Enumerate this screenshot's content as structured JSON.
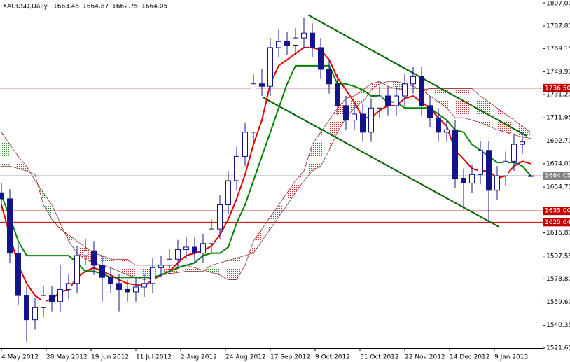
{
  "chart_data": {
    "type": "candlestick",
    "title": "XAUUSD,Daily",
    "color": "#14148a",
    "x": [
      0,
      3,
      6,
      9,
      12,
      15,
      18,
      21,
      24,
      27,
      30,
      33,
      36,
      39,
      42,
      45,
      48,
      51,
      54,
      57,
      60,
      63,
      66,
      69,
      72,
      75,
      78,
      81,
      84,
      87,
      90,
      93,
      96,
      99,
      102,
      105,
      108,
      111,
      114,
      117,
      120,
      123,
      126,
      129,
      132,
      135,
      138,
      141,
      144,
      147,
      150,
      153,
      156,
      159,
      162,
      165,
      168,
      171,
      174,
      177,
      180,
      183,
      186,
      189
    ],
    "open": [
      1650,
      1645,
      1600,
      1565,
      1545,
      1555,
      1565,
      1560,
      1570,
      1575,
      1598,
      1602,
      1590,
      1580,
      1575,
      1570,
      1568,
      1572,
      1575,
      1588,
      1590,
      1595,
      1603,
      1605,
      1600,
      1608,
      1620,
      1640,
      1660,
      1680,
      1700,
      1740,
      1738,
      1770,
      1775,
      1772,
      1778,
      1782,
      1770,
      1752,
      1740,
      1722,
      1710,
      1715,
      1700,
      1720,
      1730,
      1722,
      1730,
      1740,
      1746,
      1722,
      1712,
      1700,
      1702,
      1662,
      1658,
      1665,
      1685,
      1652,
      1664,
      1676,
      1690,
      1663.45
    ],
    "high": [
      1658,
      1653,
      1608,
      1573,
      1563,
      1573,
      1573,
      1590,
      1583,
      1606,
      1612,
      1610,
      1598,
      1588,
      1583,
      1578,
      1580,
      1583,
      1596,
      1598,
      1603,
      1611,
      1613,
      1613,
      1616,
      1628,
      1648,
      1668,
      1688,
      1708,
      1748,
      1752,
      1778,
      1785,
      1783,
      1786,
      1795,
      1790,
      1778,
      1760,
      1748,
      1730,
      1723,
      1723,
      1728,
      1738,
      1738,
      1738,
      1748,
      1754,
      1754,
      1730,
      1720,
      1710,
      1710,
      1670,
      1673,
      1693,
      1693,
      1672,
      1684,
      1698,
      1700,
      1664.87
    ],
    "low": [
      1637,
      1592,
      1557,
      1527,
      1537,
      1547,
      1552,
      1552,
      1562,
      1567,
      1590,
      1582,
      1560,
      1567,
      1552,
      1560,
      1560,
      1564,
      1567,
      1580,
      1582,
      1587,
      1595,
      1592,
      1592,
      1600,
      1612,
      1632,
      1652,
      1672,
      1692,
      1730,
      1730,
      1762,
      1764,
      1764,
      1770,
      1762,
      1744,
      1732,
      1714,
      1702,
      1702,
      1692,
      1692,
      1712,
      1714,
      1714,
      1722,
      1732,
      1714,
      1704,
      1692,
      1692,
      1654,
      1636,
      1650,
      1657,
      1626,
      1644,
      1656,
      1668,
      1682,
      1662.75
    ],
    "close": [
      1645,
      1600,
      1565,
      1545,
      1555,
      1565,
      1560,
      1570,
      1575,
      1598,
      1602,
      1590,
      1580,
      1575,
      1570,
      1568,
      1572,
      1575,
      1588,
      1590,
      1595,
      1603,
      1605,
      1600,
      1608,
      1620,
      1640,
      1660,
      1680,
      1700,
      1740,
      1738,
      1770,
      1775,
      1772,
      1778,
      1782,
      1770,
      1752,
      1740,
      1722,
      1710,
      1715,
      1700,
      1720,
      1730,
      1722,
      1730,
      1740,
      1746,
      1722,
      1712,
      1700,
      1702,
      1662,
      1658,
      1665,
      1685,
      1652,
      1664,
      1676,
      1690,
      1692,
      1664.05
    ],
    "overlays": [
      {
        "color": "#e00000",
        "values": [
          1640,
          1615,
          1590,
          1575,
          1565,
          1560,
          1562,
          1568,
          1570,
          1580,
          1585,
          1588,
          1585,
          1582,
          1578,
          1575,
          1574,
          1573,
          1578,
          1582,
          1585,
          1592,
          1598,
          1600,
          1602,
          1606,
          1615,
          1628,
          1645,
          1665,
          1690,
          1710,
          1740,
          1755,
          1760,
          1765,
          1770,
          1770,
          1768,
          1760,
          1745,
          1735,
          1725,
          1712,
          1712,
          1718,
          1722,
          1722,
          1728,
          1730,
          1725,
          1720,
          1712,
          1705,
          1685,
          1678,
          1670,
          1668,
          1668,
          1662,
          1664,
          1672,
          1676,
          1674
        ]
      },
      {
        "color": "#008000",
        "values": [
          1648,
          1630,
          1610,
          1598,
          1598,
          1598,
          1598,
          1598,
          1598,
          1592,
          1585,
          1585,
          1583,
          1580,
          1580,
          1580,
          1580,
          1580,
          1580,
          1582,
          1585,
          1588,
          1590,
          1592,
          1598,
          1600,
          1600,
          1605,
          1625,
          1640,
          1660,
          1680,
          1700,
          1720,
          1740,
          1755,
          1755,
          1755,
          1755,
          1755,
          1740,
          1740,
          1738,
          1735,
          1730,
          1730,
          1725,
          1725,
          1720,
          1720,
          1720,
          1720,
          1715,
          1710,
          1702,
          1700,
          1690,
          1685,
          1680,
          1675,
          1675,
          1675,
          1672,
          1664
        ]
      }
    ],
    "cloud": {
      "line_color": "#8b1a1a",
      "up_color": "#2e8b2e",
      "down_color": "#c83232",
      "span_a": [
        1700,
        1690,
        1680,
        1672,
        1660,
        1650,
        1640,
        1625,
        1610,
        1600,
        1595,
        1592,
        1590,
        1588,
        1585,
        1582,
        1580,
        1578,
        1580,
        1582,
        1583,
        1584,
        1585,
        1585,
        1585,
        1590,
        1592,
        1594,
        1596,
        1598,
        1600,
        1610,
        1620,
        1630,
        1640,
        1650,
        1660,
        1668,
        1672,
        1685,
        1700,
        1712,
        1720,
        1725,
        1735,
        1740,
        1742,
        1742,
        1740,
        1738,
        1735,
        1730,
        1725,
        1720,
        1712,
        1712,
        1710,
        1708,
        1705,
        1702,
        1700,
        1698,
        1696,
        1695
      ],
      "span_b": [
        1672,
        1672,
        1670,
        1668,
        1665,
        1640,
        1628,
        1620,
        1615,
        1610,
        1605,
        1600,
        1598,
        1595,
        1595,
        1595,
        1590,
        1590,
        1590,
        1590,
        1590,
        1590,
        1590,
        1588,
        1586,
        1584,
        1582,
        1578,
        1578,
        1590,
        1610,
        1620,
        1630,
        1640,
        1650,
        1660,
        1668,
        1690,
        1700,
        1710,
        1720,
        1728,
        1730,
        1735,
        1740,
        1742,
        1738,
        1736,
        1735,
        1735,
        1735,
        1736,
        1736,
        1736,
        1736,
        1736,
        1736,
        1730,
        1725,
        1720,
        1715,
        1710,
        1705,
        1700
      ]
    },
    "trend_lines": [
      {
        "color": "#006400",
        "x": [
          109.5,
          187.5
        ],
        "y": [
          1797,
          1697
        ]
      },
      {
        "color": "#006400",
        "x": [
          93.25,
          177.5
        ],
        "y": [
          1729,
          1622
        ]
      }
    ],
    "levels": [
      {
        "value": 1736.5,
        "label": "1736.50",
        "color": "#c00000"
      },
      {
        "value": 1635,
        "label": "1635.00",
        "color": "#c00000"
      },
      {
        "value": 1625.64,
        "label": "1625.64",
        "color": "#c00000"
      }
    ],
    "last_price_color": "#808080",
    "xlim": [
      -0.5,
      193.25
    ],
    "xticks": [
      {
        "value": 0,
        "label": "4 May 2012"
      },
      {
        "value": 16,
        "label": "28 May 2012"
      },
      {
        "value": 32,
        "label": "19 Jun 2012"
      },
      {
        "value": 48,
        "label": "11 Jul 2012"
      },
      {
        "value": 64,
        "label": "2 Aug 2012"
      },
      {
        "value": 80,
        "label": "24 Aug 2012"
      },
      {
        "value": 96,
        "label": "17 Sep 2012"
      },
      {
        "value": 112,
        "label": "9 Oct 2012"
      },
      {
        "value": 128,
        "label": "31 Oct 2012"
      },
      {
        "value": 144,
        "label": "22 Nov 2012"
      },
      {
        "value": 160,
        "label": "14 Dec 2012"
      },
      {
        "value": 176,
        "label": "9 Jan 2013"
      }
    ],
    "ylim": [
      1521.65,
      1807
    ],
    "yticks": [
      {
        "value": 1807,
        "label": "1807.00"
      },
      1787.85,
      1769.15,
      {
        "value": 1749.9,
        "label": "1749.90"
      },
      {
        "value": 1731.2,
        "label": "1731.20"
      },
      1711.95,
      {
        "value": 1692.7,
        "label": "1692.70"
      },
      {
        "value": 1674,
        "label": "1674.00"
      },
      1654.75,
      {
        "value": 1616.8,
        "label": "1616.80"
      },
      1597.55,
      {
        "value": 1578.8,
        "label": "1578.80"
      },
      {
        "value": 1559.6,
        "label": "1559.60"
      },
      1540.35,
      1521.65
    ]
  }
}
